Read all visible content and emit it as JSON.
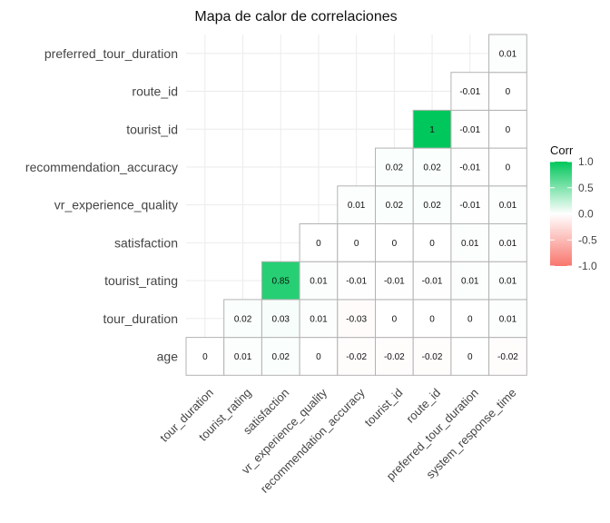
{
  "chart_data": {
    "type": "heatmap",
    "title": "Mapa de calor de correlaciones",
    "x_categories": [
      "tour_duration",
      "tourist_rating",
      "satisfaction",
      "vr_experience_quality",
      "recommendation_accuracy",
      "tourist_id",
      "route_id",
      "preferred_tour_duration",
      "system_response_time"
    ],
    "y_categories": [
      "age",
      "tour_duration",
      "tourist_rating",
      "satisfaction",
      "vr_experience_quality",
      "recommendation_accuracy",
      "tourist_id",
      "route_id",
      "preferred_tour_duration"
    ],
    "rows": [
      [
        0,
        0.01,
        0.02,
        0,
        -0.02,
        -0.02,
        -0.02,
        0,
        -0.02
      ],
      [
        null,
        0.02,
        0.03,
        0.01,
        -0.03,
        0,
        0,
        0,
        0.01
      ],
      [
        null,
        null,
        0.85,
        0.01,
        -0.01,
        -0.01,
        -0.01,
        0.01,
        0.01
      ],
      [
        null,
        null,
        null,
        0,
        0,
        0,
        0,
        0.01,
        0.01
      ],
      [
        null,
        null,
        null,
        null,
        0.01,
        0.02,
        0.02,
        -0.01,
        0.01
      ],
      [
        null,
        null,
        null,
        null,
        null,
        0.02,
        0.02,
        -0.01,
        0
      ],
      [
        null,
        null,
        null,
        null,
        null,
        null,
        1,
        -0.01,
        0
      ],
      [
        null,
        null,
        null,
        null,
        null,
        null,
        null,
        -0.01,
        0
      ],
      [
        null,
        null,
        null,
        null,
        null,
        null,
        null,
        null,
        0.01
      ]
    ],
    "legend": {
      "title": "Corr",
      "ticks": [
        "1.0",
        "0.5",
        "0.0",
        "-0.5",
        "-1.0"
      ],
      "tick_values": [
        1,
        0.5,
        0,
        -0.5,
        -1
      ],
      "range": [
        -1,
        1
      ],
      "colors": {
        "low": "#F8766D",
        "mid": "#FFFFFF",
        "high": "#00C75B"
      }
    },
    "grid": true,
    "legend_placement": "right"
  }
}
